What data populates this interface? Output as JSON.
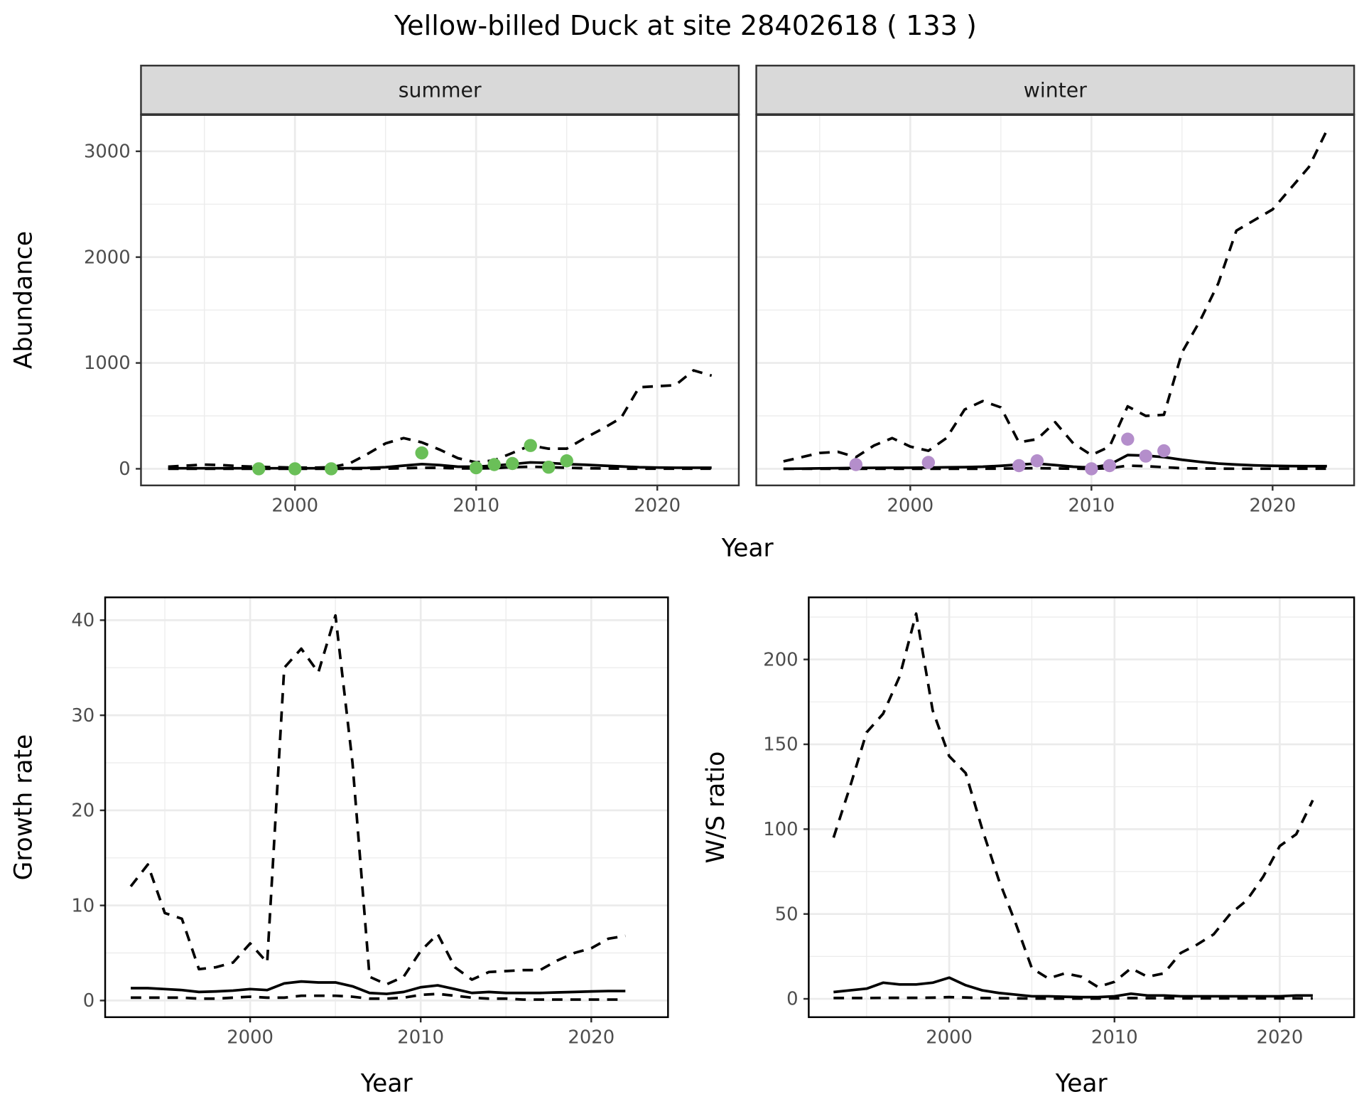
{
  "title": "Yellow-billed Duck at site 28402618 ( 133 )",
  "colors": {
    "summer_points": "#6abf58",
    "winter_points": "#b48ecb",
    "line": "#000000",
    "grid": "#ebebeb",
    "strip_bg": "#d9d9d9"
  },
  "chart_data": [
    {
      "id": "summer",
      "type": "line",
      "strip_label": "summer",
      "xlabel": "Year",
      "ylabel": "Abundance",
      "xlim": [
        1991.5,
        2024.5
      ],
      "ylim": [
        -157,
        3347
      ],
      "xticks": [
        2000,
        2010,
        2020
      ],
      "xtick_labels": [
        "2000",
        "2010",
        "2020"
      ],
      "yticks": [
        0,
        1000,
        2000,
        3000
      ],
      "ytick_labels": [
        "0",
        "1000",
        "2000",
        "3000"
      ],
      "x": [
        1993,
        1994,
        1995,
        1996,
        1997,
        1998,
        1999,
        2000,
        2001,
        2002,
        2003,
        2004,
        2005,
        2006,
        2007,
        2008,
        2009,
        2010,
        2011,
        2012,
        2013,
        2014,
        2015,
        2016,
        2017,
        2018,
        2019,
        2020,
        2021,
        2022,
        2023
      ],
      "series": [
        {
          "name": "mean",
          "style": "solid",
          "values": [
            5,
            5,
            5,
            5,
            5,
            5,
            5,
            5,
            5,
            5,
            6,
            8,
            15,
            30,
            45,
            35,
            20,
            20,
            30,
            45,
            60,
            55,
            45,
            38,
            30,
            22,
            15,
            12,
            10,
            10,
            10
          ]
        },
        {
          "name": "upper",
          "style": "dashed",
          "values": [
            20,
            30,
            40,
            35,
            25,
            18,
            15,
            12,
            10,
            15,
            50,
            140,
            240,
            290,
            250,
            180,
            100,
            60,
            80,
            150,
            220,
            190,
            190,
            290,
            380,
            480,
            770,
            780,
            790,
            930,
            880
          ]
        },
        {
          "name": "lower",
          "style": "dashed",
          "values": [
            0,
            0,
            0,
            0,
            0,
            0,
            0,
            0,
            0,
            0,
            0,
            0,
            2,
            5,
            10,
            8,
            4,
            3,
            6,
            15,
            20,
            15,
            10,
            5,
            3,
            2,
            1,
            1,
            1,
            1,
            1
          ]
        }
      ],
      "points": {
        "x": [
          1998,
          2000,
          2002,
          2007,
          2010,
          2011,
          2012,
          2013,
          2014,
          2015
        ],
        "y": [
          0,
          0,
          0,
          150,
          10,
          40,
          50,
          220,
          15,
          75
        ]
      }
    },
    {
      "id": "winter",
      "type": "line",
      "strip_label": "winter",
      "xlabel": "Year",
      "ylabel": "Abundance",
      "xlim": [
        1991.5,
        2024.5
      ],
      "ylim": [
        -157,
        3347
      ],
      "xticks": [
        2000,
        2010,
        2020
      ],
      "xtick_labels": [
        "2000",
        "2010",
        "2020"
      ],
      "yticks": [
        0,
        1000,
        2000,
        3000
      ],
      "x": [
        1993,
        1994,
        1995,
        1996,
        1997,
        1998,
        1999,
        2000,
        2001,
        2002,
        2003,
        2004,
        2005,
        2006,
        2007,
        2008,
        2009,
        2010,
        2011,
        2012,
        2013,
        2014,
        2015,
        2016,
        2017,
        2018,
        2019,
        2020,
        2021,
        2022,
        2023
      ],
      "series": [
        {
          "name": "mean",
          "style": "solid",
          "values": [
            0,
            2,
            4,
            6,
            8,
            9,
            10,
            10,
            12,
            14,
            16,
            20,
            28,
            40,
            50,
            35,
            20,
            12,
            40,
            130,
            125,
            110,
            85,
            65,
            50,
            40,
            32,
            28,
            26,
            25,
            25
          ]
        },
        {
          "name": "upper",
          "style": "dashed",
          "values": [
            70,
            110,
            150,
            160,
            110,
            220,
            290,
            210,
            170,
            290,
            560,
            640,
            580,
            250,
            280,
            440,
            240,
            130,
            210,
            590,
            500,
            510,
            1100,
            1400,
            1750,
            2250,
            2350,
            2450,
            2650,
            2850,
            3200
          ]
        },
        {
          "name": "lower",
          "style": "dashed",
          "values": [
            0,
            0,
            0,
            0,
            0,
            0,
            0,
            0,
            0,
            0,
            0,
            1,
            2,
            4,
            6,
            3,
            1,
            0,
            5,
            30,
            25,
            15,
            6,
            3,
            2,
            1,
            1,
            1,
            1,
            1,
            1
          ]
        }
      ],
      "points": {
        "x": [
          1997,
          2001,
          2006,
          2007,
          2010,
          2011,
          2012,
          2013,
          2014
        ],
        "y": [
          40,
          60,
          30,
          75,
          0,
          30,
          280,
          120,
          170
        ]
      }
    },
    {
      "id": "growth",
      "type": "line",
      "xlabel": "Year",
      "ylabel": "Growth rate",
      "xlim": [
        1991.5,
        2024.5
      ],
      "ylim": [
        -1.75,
        42.4
      ],
      "xticks": [
        2000,
        2010,
        2020
      ],
      "xtick_labels": [
        "2000",
        "2010",
        "2020"
      ],
      "yticks": [
        0,
        10,
        20,
        30,
        40
      ],
      "ytick_labels": [
        "0",
        "10",
        "20",
        "30",
        "40"
      ],
      "x": [
        1993,
        1994,
        1995,
        1996,
        1997,
        1998,
        1999,
        2000,
        2001,
        2002,
        2003,
        2004,
        2005,
        2006,
        2007,
        2008,
        2009,
        2010,
        2011,
        2012,
        2013,
        2014,
        2015,
        2016,
        2017,
        2018,
        2019,
        2020,
        2021,
        2022
      ],
      "series": [
        {
          "name": "mean",
          "style": "solid",
          "values": [
            1.3,
            1.3,
            1.2,
            1.1,
            0.9,
            0.95,
            1.05,
            1.2,
            1.1,
            1.8,
            2.0,
            1.9,
            1.9,
            1.5,
            0.8,
            0.7,
            0.9,
            1.4,
            1.6,
            1.2,
            0.8,
            0.9,
            0.8,
            0.8,
            0.8,
            0.85,
            0.9,
            0.95,
            1.0,
            1.0
          ]
        },
        {
          "name": "upper",
          "style": "dashed",
          "values": [
            12,
            14.3,
            9.2,
            8.6,
            3.3,
            3.5,
            4,
            6,
            4,
            35,
            37,
            34.5,
            40.5,
            25,
            2.5,
            1.7,
            2.5,
            5.2,
            7,
            3.5,
            2.2,
            3,
            3.1,
            3.2,
            3.2,
            4.2,
            5,
            5.5,
            6.5,
            6.8
          ]
        },
        {
          "name": "lower",
          "style": "dashed",
          "values": [
            0.3,
            0.3,
            0.3,
            0.3,
            0.2,
            0.2,
            0.3,
            0.4,
            0.3,
            0.3,
            0.5,
            0.5,
            0.5,
            0.4,
            0.2,
            0.2,
            0.3,
            0.6,
            0.7,
            0.5,
            0.3,
            0.2,
            0.2,
            0.1,
            0.1,
            0.1,
            0.1,
            0.1,
            0.1,
            0.1
          ]
        }
      ]
    },
    {
      "id": "ratio",
      "type": "line",
      "xlabel": "Year",
      "ylabel": "W/S ratio",
      "xlim": [
        1991.5,
        2024.5
      ],
      "ylim": [
        -10.8,
        236.6
      ],
      "xticks": [
        2000,
        2010,
        2020
      ],
      "xtick_labels": [
        "2000",
        "2010",
        "2020"
      ],
      "yticks": [
        0,
        50,
        100,
        150,
        200
      ],
      "ytick_labels": [
        "0",
        "50",
        "100",
        "150",
        "200"
      ],
      "x": [
        1993,
        1994,
        1995,
        1996,
        1997,
        1998,
        1999,
        2000,
        2001,
        2002,
        2003,
        2004,
        2005,
        2006,
        2007,
        2008,
        2009,
        2010,
        2011,
        2012,
        2013,
        2014,
        2015,
        2016,
        2017,
        2018,
        2019,
        2020,
        2021,
        2022
      ],
      "series": [
        {
          "name": "mean",
          "style": "solid",
          "values": [
            4,
            5,
            6,
            9.5,
            8.5,
            8.5,
            9.5,
            12.5,
            8,
            5,
            3.5,
            2.5,
            1.5,
            1.5,
            1.2,
            1,
            1,
            1.5,
            3,
            2,
            2,
            1.5,
            1.5,
            1.5,
            1.5,
            1.5,
            1.5,
            1.5,
            2,
            2
          ]
        },
        {
          "name": "upper",
          "style": "dashed",
          "values": [
            95,
            125,
            157,
            168,
            190,
            227,
            170,
            143,
            133,
            100,
            70,
            45,
            18,
            12,
            15,
            13,
            7,
            10,
            18,
            13,
            15,
            27,
            32,
            38,
            50,
            58,
            72,
            90,
            97,
            117
          ]
        },
        {
          "name": "lower",
          "style": "dashed",
          "values": [
            0.5,
            0.5,
            0.5,
            0.6,
            0.6,
            0.6,
            0.7,
            1,
            0.8,
            0.5,
            0.4,
            0.3,
            0.2,
            0.2,
            0.2,
            0.2,
            0.2,
            0.3,
            0.5,
            0.4,
            0.4,
            0.3,
            0.3,
            0.3,
            0.3,
            0.3,
            0.3,
            0.3,
            0.3,
            0.3
          ]
        }
      ]
    }
  ],
  "shared_xlabel_top": "Year"
}
